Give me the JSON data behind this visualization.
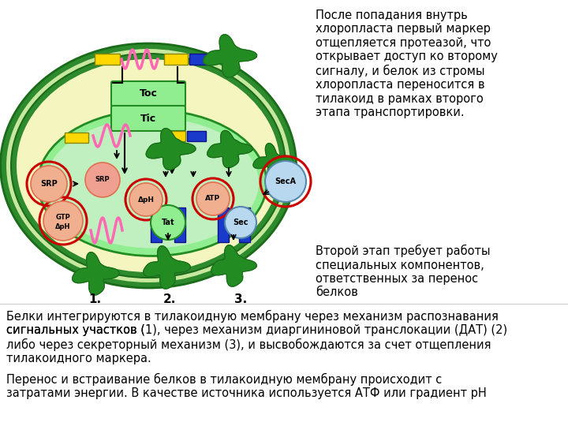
{
  "background_color": "#ffffff",
  "fig_width": 7.2,
  "fig_height": 5.4,
  "text1": "После попадания внутрь\nхлоропласта первый маркер\nотщепляется протеазой, что\nоткрывает доступ ко второму\nсигналу, и белок из стромы\nхлоропласта переносится в\nтилакоид в рамках второго\nэтапа транспортировки.",
  "text2": "Второй этап требует работы\nспециальных компонентов,\nответственных за перенос\nбелков",
  "text3_line1": "Белки интегрируются в тилакоидную мембрану через механизм распознавания",
  "text3_line2": "сигнальных участков (1), через механизм диаргининовой транслокации (ДАТ) (2)",
  "text3_line3": "либо через секреторный механизм (3), и высвобождаются за счет отщепления",
  "text3_line4": "тилакоидного маркера.",
  "text4_line1": "Перенос и встраивание белков в тилакоидную мембрану происходит с",
  "text4_line2": "затратами энергии. В качестве источника используется АТФ или градиент рН",
  "bold_nums": [
    "1",
    "2",
    "3"
  ],
  "outer_green": "#2d8a2d",
  "mid_green": "#c8e8a0",
  "dark_green": "#228B22",
  "light_yellow": "#f5f5c0",
  "thylakoid_green": "#90ee90",
  "thylakoid_inner": "#c0f0c0",
  "toc_tic_fill": "#90ee90",
  "red_circle": "#cc0000",
  "srp_fill": "#f0b090",
  "srp_edge": "#e07050",
  "blue_rect": "#1a3acc",
  "yellow_rect": "#FFD700",
  "pink_protein": "#FF69B4",
  "green_protein": "#228B22",
  "sec_fill": "#b8d8f0",
  "tat_fill": "#90ee90",
  "gtp_fill": "#f0b090"
}
